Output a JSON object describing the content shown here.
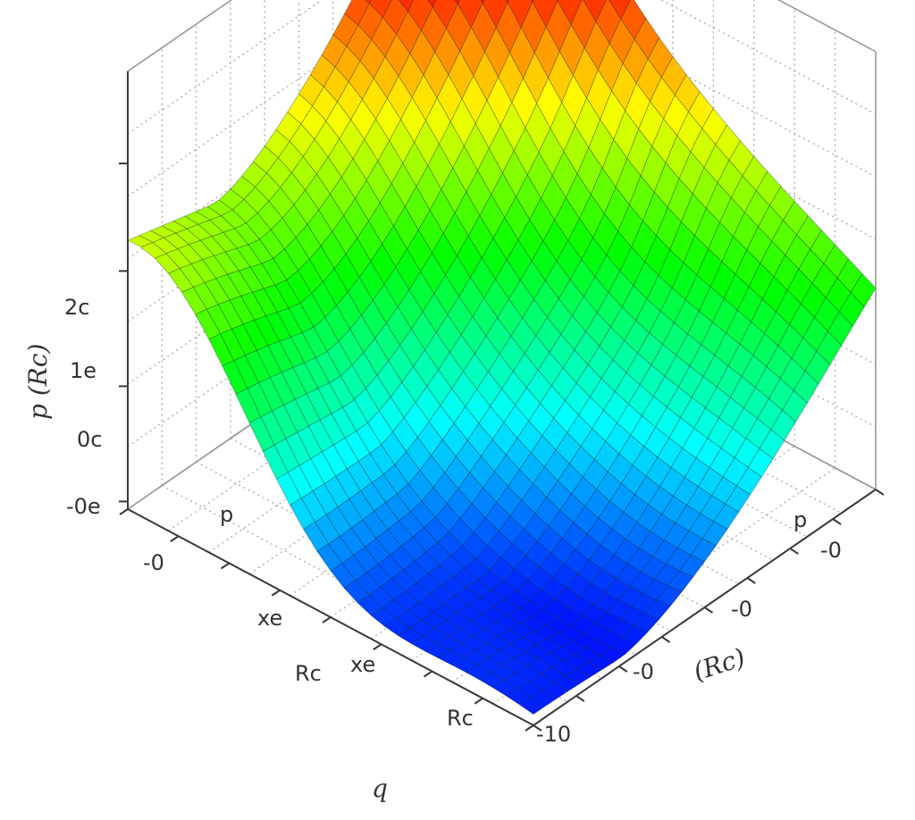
{
  "chart_data": {
    "type": "surface",
    "grid": true,
    "colormap": [
      "#0000ff",
      "#00ffff",
      "#00ff00",
      "#ffff00",
      "#ff0000"
    ],
    "zlabel": "p (Rc)",
    "xlabel": "q",
    "ylabel": "(Rc)",
    "z_ticks": [
      "2c",
      "1e",
      "0c",
      "-0e"
    ],
    "x_ticks": [
      "p",
      "-0",
      "xe",
      "Rc",
      "xe",
      "Rc"
    ],
    "y_ticks": [
      "p",
      "-0",
      "-0",
      "-0",
      "-10"
    ],
    "x_range": [
      0,
      1
    ],
    "y_range": [
      0,
      1
    ],
    "z_range": [
      -0.2,
      2.3
    ],
    "surface_shape": {
      "left_plateau_height": 1.55,
      "valley_floor_height": -0.15,
      "rear_ridge_height": 2.1,
      "right_peak_height": 2.3,
      "description_note": ""
    }
  }
}
